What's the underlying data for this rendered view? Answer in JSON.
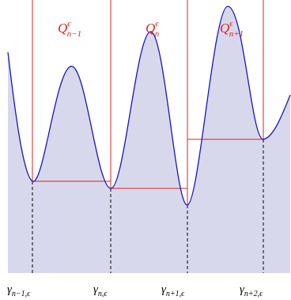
{
  "figure": {
    "colors": {
      "fill": "#d8d8ec",
      "curve": "#1515c8",
      "box": "#e02020",
      "guide": "#000000",
      "label": "#e02020",
      "text": "#000000"
    },
    "box_labels": [
      {
        "main": "Q",
        "sup": "ϵ",
        "sub": "n−1"
      },
      {
        "main": "Q",
        "sup": "ϵ",
        "sub": "n"
      },
      {
        "main": "Q",
        "sup": "ϵ",
        "sub": "n+1"
      }
    ],
    "minima_labels": [
      {
        "main": "γ",
        "sub": "n−1,ϵ"
      },
      {
        "main": "γ",
        "sub": "n,ϵ"
      },
      {
        "main": "γ",
        "sub": "n+1,ϵ"
      },
      {
        "main": "γ",
        "sub": "n+2,ϵ"
      }
    ]
  }
}
